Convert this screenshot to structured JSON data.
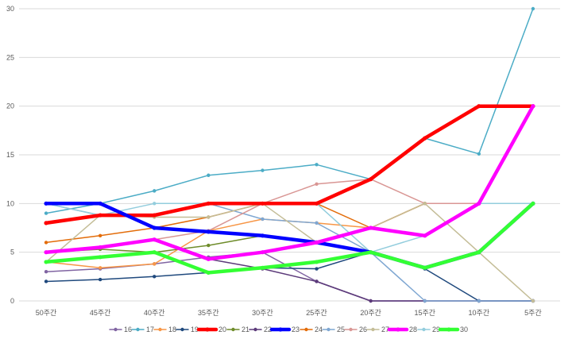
{
  "chart_data": {
    "type": "line",
    "title": "",
    "xlabel": "",
    "ylabel": "",
    "categories": [
      "50주간",
      "45주간",
      "40주간",
      "35주간",
      "30주간",
      "25주간",
      "20주간",
      "15주간",
      "10주간",
      "5주간"
    ],
    "ylim": [
      0,
      30
    ],
    "yticks": [
      0,
      5,
      10,
      15,
      20,
      25,
      30
    ],
    "grid": true,
    "legend_position": "bottom",
    "series": [
      {
        "name": "16",
        "color": "#8064a2",
        "bold": false,
        "values": [
          3.0,
          3.3,
          3.8,
          4.5,
          5.0,
          2.0,
          0,
          0,
          0,
          0
        ]
      },
      {
        "name": "17",
        "color": "#4bacc6",
        "bold": false,
        "values": [
          9.0,
          10.0,
          11.3,
          12.9,
          13.4,
          14.0,
          12.5,
          16.7,
          15.1,
          30.0
        ]
      },
      {
        "name": "18",
        "color": "#f79646",
        "bold": false,
        "values": [
          4.0,
          3.4,
          3.8,
          7.2,
          8.4,
          8.0,
          7.5,
          10.0,
          10.0,
          10.0
        ]
      },
      {
        "name": "19",
        "color": "#1f497d",
        "bold": false,
        "values": [
          2.0,
          2.2,
          2.5,
          2.9,
          3.4,
          3.3,
          5.0,
          3.3,
          0,
          0
        ]
      },
      {
        "name": "20",
        "color": "#ff0000",
        "bold": true,
        "values": [
          8.0,
          8.8,
          8.8,
          10.0,
          10.0,
          10.0,
          12.5,
          16.7,
          20.0,
          20.0
        ]
      },
      {
        "name": "21",
        "color": "#6e8c2a",
        "bold": false,
        "values": [
          5.0,
          5.3,
          5.0,
          5.7,
          6.7,
          6.0,
          5.0,
          3.4,
          5.0,
          10.0
        ]
      },
      {
        "name": "22",
        "color": "#5c3a7a",
        "bold": false,
        "values": [
          5.0,
          5.5,
          6.3,
          4.3,
          3.3,
          2.0,
          0,
          0,
          0,
          0
        ]
      },
      {
        "name": "23",
        "color": "#0000ff",
        "bold": true,
        "values": [
          10.0,
          10.0,
          7.5,
          7.1,
          6.7,
          6.0,
          5.0,
          3.4,
          5.0,
          10.0
        ]
      },
      {
        "name": "24",
        "color": "#e36c09",
        "bold": false,
        "values": [
          6.0,
          6.7,
          7.5,
          8.6,
          10.0,
          10.0,
          7.5,
          10.0,
          10.0,
          10.0
        ]
      },
      {
        "name": "25",
        "color": "#7fa7d2",
        "bold": false,
        "values": [
          10.0,
          8.8,
          8.8,
          10.0,
          8.4,
          8.0,
          5.0,
          0,
          0,
          0
        ]
      },
      {
        "name": "26",
        "color": "#d99694",
        "bold": false,
        "values": [
          5.0,
          5.5,
          6.3,
          7.2,
          10.0,
          12.0,
          12.5,
          10.0,
          10.0,
          10.0
        ]
      },
      {
        "name": "27",
        "color": "#c4bd97",
        "bold": false,
        "values": [
          4.0,
          8.8,
          8.6,
          8.6,
          10.0,
          6.0,
          7.5,
          10.0,
          5.0,
          0
        ]
      },
      {
        "name": "28",
        "color": "#ff00ff",
        "bold": true,
        "values": [
          5.0,
          5.5,
          6.3,
          4.3,
          5.0,
          6.0,
          7.5,
          6.7,
          10.0,
          20.0
        ]
      },
      {
        "name": "29",
        "color": "#93cddd",
        "bold": false,
        "values": [
          10.0,
          8.8,
          10.0,
          10.0,
          10.0,
          10.0,
          5.0,
          6.7,
          10.0,
          10.0
        ]
      },
      {
        "name": "30",
        "color": "#33ff33",
        "bold": true,
        "values": [
          4.0,
          4.5,
          5.0,
          2.9,
          3.4,
          4.0,
          5.0,
          3.4,
          5.0,
          10.0
        ]
      }
    ]
  }
}
